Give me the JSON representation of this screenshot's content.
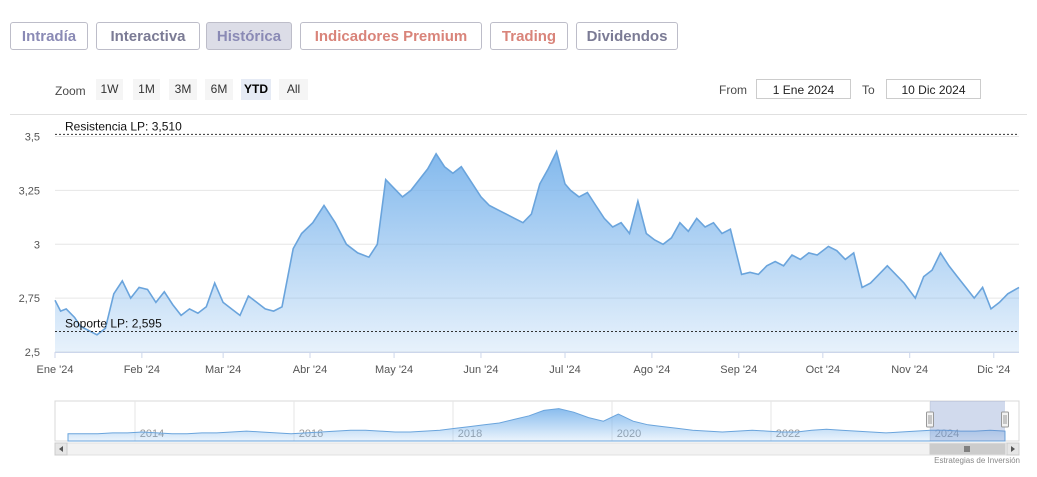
{
  "tabs": [
    {
      "label": "Intradía",
      "color": "#8a8ab5",
      "active": false
    },
    {
      "label": "Interactiva",
      "color": "#7b7b95",
      "active": false
    },
    {
      "label": "Histórica",
      "color": "#8a8ab5",
      "active": true
    },
    {
      "label": "Indicadores Premium",
      "color": "#d9847a",
      "active": false
    },
    {
      "label": "Trading",
      "color": "#d9847a",
      "active": false
    },
    {
      "label": "Dividendos",
      "color": "#7b7b95",
      "active": false
    }
  ],
  "zoom": {
    "label": "Zoom",
    "options": [
      "1W",
      "1M",
      "3M",
      "6M",
      "YTD",
      "All"
    ],
    "selected": "YTD"
  },
  "range": {
    "from_label": "From",
    "from_value": "1 Ene 2024",
    "to_label": "To",
    "to_value": "10 Dic 2024"
  },
  "chart_data": {
    "type": "area",
    "title": "",
    "xlabel": "",
    "ylabel": "",
    "ylim": [
      2.5,
      3.6
    ],
    "yticks": [
      {
        "value": 2.5,
        "label": "2,5"
      },
      {
        "value": 2.75,
        "label": "2,75"
      },
      {
        "value": 3,
        "label": "3"
      },
      {
        "value": 3.25,
        "label": "3,25"
      },
      {
        "value": 3.5,
        "label": "3,5"
      }
    ],
    "xticks": [
      {
        "date": "2024-01-01",
        "label": "Ene '24"
      },
      {
        "date": "2024-02-01",
        "label": "Feb '24"
      },
      {
        "date": "2024-03-01",
        "label": "Mar '24"
      },
      {
        "date": "2024-04-01",
        "label": "Abr '24"
      },
      {
        "date": "2024-05-01",
        "label": "May '24"
      },
      {
        "date": "2024-06-01",
        "label": "Jun '24"
      },
      {
        "date": "2024-07-01",
        "label": "Jul '24"
      },
      {
        "date": "2024-08-01",
        "label": "Ago '24"
      },
      {
        "date": "2024-09-01",
        "label": "Sep '24"
      },
      {
        "date": "2024-10-01",
        "label": "Oct '24"
      },
      {
        "date": "2024-11-01",
        "label": "Nov '24"
      },
      {
        "date": "2024-12-01",
        "label": "Dic '24"
      }
    ],
    "x_range": [
      "2024-01-01",
      "2024-12-10"
    ],
    "grid": true,
    "color": "#7cb5ec",
    "reference_lines": [
      {
        "label": "Resistencia LP: 3,510",
        "value": 3.51
      },
      {
        "label": "Soporte LP: 2,595",
        "value": 2.595
      }
    ],
    "series": [
      {
        "x": [
          "2024-01-01",
          "2024-01-03",
          "2024-01-05",
          "2024-01-08",
          "2024-01-10",
          "2024-01-13",
          "2024-01-16",
          "2024-01-19",
          "2024-01-22",
          "2024-01-25",
          "2024-01-28",
          "2024-01-31",
          "2024-02-03",
          "2024-02-06",
          "2024-02-09",
          "2024-02-12",
          "2024-02-15",
          "2024-02-18",
          "2024-02-21",
          "2024-02-24",
          "2024-02-27",
          "2024-03-01",
          "2024-03-04",
          "2024-03-07",
          "2024-03-10",
          "2024-03-13",
          "2024-03-16",
          "2024-03-19",
          "2024-03-22",
          "2024-03-26",
          "2024-03-29",
          "2024-04-02",
          "2024-04-06",
          "2024-04-10",
          "2024-04-14",
          "2024-04-18",
          "2024-04-22",
          "2024-04-25",
          "2024-04-28",
          "2024-05-01",
          "2024-05-04",
          "2024-05-07",
          "2024-05-10",
          "2024-05-13",
          "2024-05-16",
          "2024-05-19",
          "2024-05-22",
          "2024-05-25",
          "2024-05-28",
          "2024-06-01",
          "2024-06-04",
          "2024-06-07",
          "2024-06-10",
          "2024-06-13",
          "2024-06-16",
          "2024-06-19",
          "2024-06-22",
          "2024-06-25",
          "2024-06-28",
          "2024-07-01",
          "2024-07-03",
          "2024-07-06",
          "2024-07-09",
          "2024-07-12",
          "2024-07-15",
          "2024-07-18",
          "2024-07-21",
          "2024-07-24",
          "2024-07-27",
          "2024-07-30",
          "2024-08-02",
          "2024-08-05",
          "2024-08-08",
          "2024-08-11",
          "2024-08-14",
          "2024-08-17",
          "2024-08-20",
          "2024-08-23",
          "2024-08-26",
          "2024-08-29",
          "2024-09-02",
          "2024-09-05",
          "2024-09-08",
          "2024-09-11",
          "2024-09-14",
          "2024-09-17",
          "2024-09-20",
          "2024-09-23",
          "2024-09-26",
          "2024-09-29",
          "2024-10-03",
          "2024-10-06",
          "2024-10-09",
          "2024-10-12",
          "2024-10-15",
          "2024-10-18",
          "2024-10-21",
          "2024-10-24",
          "2024-10-27",
          "2024-10-30",
          "2024-11-03",
          "2024-11-06",
          "2024-11-09",
          "2024-11-12",
          "2024-11-15",
          "2024-11-18",
          "2024-11-21",
          "2024-11-24",
          "2024-11-27",
          "2024-11-30",
          "2024-12-03",
          "2024-12-06",
          "2024-12-10"
        ],
        "values": [
          2.74,
          2.69,
          2.7,
          2.66,
          2.62,
          2.6,
          2.58,
          2.61,
          2.77,
          2.83,
          2.75,
          2.8,
          2.79,
          2.73,
          2.78,
          2.72,
          2.67,
          2.7,
          2.68,
          2.71,
          2.82,
          2.73,
          2.7,
          2.67,
          2.76,
          2.73,
          2.7,
          2.69,
          2.71,
          2.98,
          3.05,
          3.1,
          3.18,
          3.1,
          3.0,
          2.96,
          2.94,
          3.0,
          3.3,
          3.26,
          3.22,
          3.25,
          3.3,
          3.35,
          3.42,
          3.36,
          3.33,
          3.36,
          3.3,
          3.22,
          3.18,
          3.16,
          3.14,
          3.12,
          3.1,
          3.14,
          3.28,
          3.35,
          3.43,
          3.28,
          3.25,
          3.22,
          3.24,
          3.18,
          3.12,
          3.08,
          3.1,
          3.05,
          3.2,
          3.05,
          3.02,
          3.0,
          3.03,
          3.1,
          3.06,
          3.12,
          3.08,
          3.1,
          3.05,
          3.07,
          2.86,
          2.87,
          2.86,
          2.9,
          2.92,
          2.9,
          2.95,
          2.93,
          2.96,
          2.95,
          2.99,
          2.97,
          2.93,
          2.96,
          2.8,
          2.82,
          2.86,
          2.9,
          2.86,
          2.82,
          2.75,
          2.85,
          2.88,
          2.96,
          2.9,
          2.85,
          2.8,
          2.75,
          2.8,
          2.7,
          2.73,
          2.77,
          2.8
        ]
      }
    ]
  },
  "navigator": {
    "labels": [
      "2014",
      "2016",
      "2018",
      "2020",
      "2022",
      "2024"
    ],
    "history": [
      2.9,
      2.9,
      2.9,
      2.95,
      2.95,
      3.0,
      2.95,
      2.9,
      2.9,
      2.95,
      2.95,
      3.0,
      3.05,
      3.0,
      2.95,
      2.9,
      2.95,
      3.0,
      3.05,
      3.1,
      3.1,
      3.05,
      3.0,
      3.0,
      3.05,
      3.1,
      3.2,
      3.3,
      3.4,
      3.5,
      3.7,
      3.9,
      4.2,
      4.3,
      4.1,
      3.8,
      3.6,
      4.0,
      3.6,
      3.4,
      3.3,
      3.2,
      3.1,
      3.05,
      3.0,
      3.05,
      3.1,
      3.05,
      3.0,
      3.0,
      3.1,
      3.15,
      3.1,
      3.05,
      3.0,
      2.95,
      3.0,
      3.05,
      3.1,
      3.1,
      3.05,
      3.05,
      3.1,
      3.05
    ]
  },
  "credit": "Estrategias de Inversión"
}
